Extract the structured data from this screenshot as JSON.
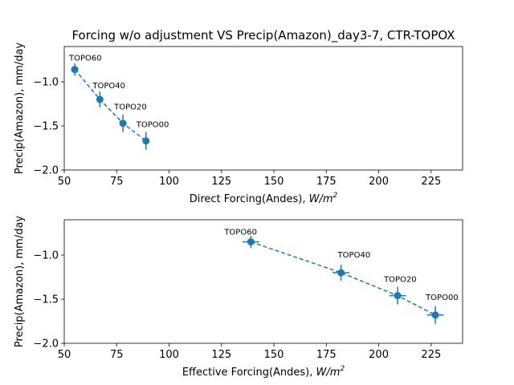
{
  "chart_data": [
    {
      "type": "scatter",
      "title": "Forcing w/o adjustment VS Precip(Amazon)_day3-7, CTR-TOPOX",
      "xlabel": "Direct Forcing(Andes),",
      "xlabel_unit": "W/m",
      "xlabel_unit_sup": "2",
      "ylabel": "Precip(Amazon), mm/day",
      "xlim": [
        50,
        240
      ],
      "ylim": [
        -2.0,
        -0.6
      ],
      "xticks": [
        "50",
        "75",
        "100",
        "125",
        "150",
        "175",
        "200",
        "225"
      ],
      "yticks": [
        "−1.0",
        "−1.5",
        "−2.0"
      ],
      "color": "#1f77b4",
      "line_style": "dashed",
      "points": [
        {
          "label": "TOPO60",
          "x": 55,
          "y": -0.86,
          "yerr": 0.07,
          "xerr": 0
        },
        {
          "label": "TOPO40",
          "x": 67,
          "y": -1.2,
          "yerr": 0.09,
          "xerr": 0
        },
        {
          "label": "TOPO20",
          "x": 78,
          "y": -1.47,
          "yerr": 0.1,
          "xerr": 0
        },
        {
          "label": "TOPO00",
          "x": 89,
          "y": -1.67,
          "yerr": 0.1,
          "xerr": 0
        }
      ]
    },
    {
      "type": "scatter",
      "title": "",
      "xlabel": "Effective Forcing(Andes),",
      "xlabel_unit": "W/m",
      "xlabel_unit_sup": "2",
      "ylabel": "Precip(Amazon), mm/day",
      "xlim": [
        50,
        240
      ],
      "ylim": [
        -2.0,
        -0.6
      ],
      "xticks": [
        "50",
        "75",
        "100",
        "125",
        "150",
        "175",
        "200",
        "225"
      ],
      "yticks": [
        "−1.0",
        "−1.5",
        "−2.0"
      ],
      "color": "#1f77b4",
      "line_style": "dashed",
      "points": [
        {
          "label": "TOPO60",
          "x": 139,
          "y": -0.85,
          "yerr": 0.07,
          "xerr": 4
        },
        {
          "label": "TOPO40",
          "x": 182,
          "y": -1.2,
          "yerr": 0.09,
          "xerr": 4
        },
        {
          "label": "TOPO20",
          "x": 209,
          "y": -1.46,
          "yerr": 0.1,
          "xerr": 4
        },
        {
          "label": "TOPO00",
          "x": 227,
          "y": -1.68,
          "yerr": 0.1,
          "xerr": 4
        }
      ]
    }
  ]
}
